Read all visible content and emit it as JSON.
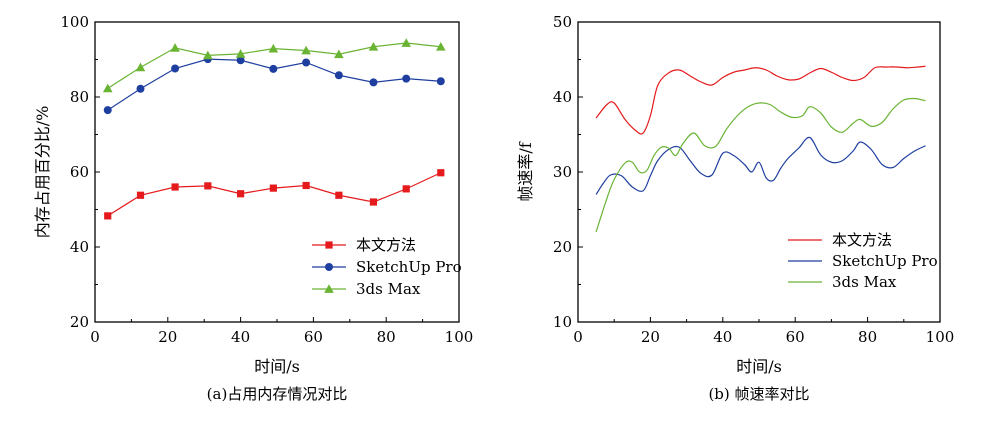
{
  "chart_data": [
    {
      "type": "line",
      "caption": "(a)占用内存情况对比",
      "xlabel": "时间/s",
      "ylabel": "内存占用百分比/%",
      "xlim": [
        0,
        100
      ],
      "ylim": [
        20,
        100
      ],
      "xticks": [
        "0",
        "20",
        "40",
        "60",
        "80",
        "100"
      ],
      "yticks": [
        "20",
        "40",
        "60",
        "80",
        "100"
      ],
      "legend_position": "bottom-right",
      "x": [
        3.5,
        12.5,
        22,
        31,
        40,
        49,
        58,
        67,
        76.5,
        85.5,
        95
      ],
      "series": [
        {
          "name": "本文方法",
          "color": "#e41a1c",
          "marker": "square",
          "values": [
            48.3,
            53.8,
            56.0,
            56.3,
            54.2,
            55.7,
            56.4,
            53.8,
            52.0,
            55.5,
            59.8
          ]
        },
        {
          "name": "SketchUp Pro",
          "color": "#1f3fa0",
          "marker": "circle",
          "values": [
            76.5,
            82.2,
            87.6,
            90.1,
            89.8,
            87.5,
            89.2,
            85.8,
            83.9,
            84.9,
            84.2
          ]
        },
        {
          "name": "3ds Max",
          "color": "#6ab434",
          "marker": "triangle",
          "values": [
            82.3,
            87.9,
            93.1,
            91.1,
            91.5,
            92.9,
            92.4,
            91.4,
            93.4,
            94.4,
            93.4
          ]
        }
      ]
    },
    {
      "type": "line",
      "caption": "(b) 帧速率对比",
      "xlabel": "时间/s",
      "ylabel": "帧速率/f",
      "xlim": [
        0,
        100
      ],
      "ylim": [
        10,
        50
      ],
      "xticks": [
        "0",
        "20",
        "40",
        "60",
        "80",
        "100"
      ],
      "yticks": [
        "10",
        "20",
        "30",
        "40",
        "50"
      ],
      "legend_position": "bottom-right",
      "series": [
        {
          "name": "本文方法",
          "color": "#e41a1c",
          "x": [
            5,
            8,
            10,
            13,
            16,
            18,
            20,
            22,
            25,
            28,
            31,
            34,
            37,
            40,
            43,
            46,
            49,
            52,
            55,
            58,
            61,
            64,
            67,
            70,
            73,
            76,
            79,
            82,
            85,
            88,
            91,
            94,
            96
          ],
          "values": [
            37.2,
            39.0,
            39.2,
            37.0,
            35.5,
            35.2,
            37.5,
            41.5,
            43.2,
            43.6,
            42.8,
            42.0,
            41.6,
            42.6,
            43.3,
            43.6,
            43.9,
            43.6,
            42.8,
            42.3,
            42.4,
            43.2,
            43.8,
            43.3,
            42.6,
            42.2,
            42.6,
            43.9,
            44.0,
            44.0,
            43.9,
            44.0,
            44.1
          ]
        },
        {
          "name": "SketchUp Pro",
          "color": "#1f3fa0",
          "x": [
            5,
            7,
            9,
            12,
            15,
            18,
            20,
            22,
            25,
            28,
            31,
            34,
            37,
            40,
            43,
            46,
            48,
            50,
            52,
            54,
            56,
            58,
            61,
            64,
            67,
            70,
            73,
            76,
            78,
            81,
            84,
            87,
            90,
            93,
            96
          ],
          "values": [
            27.0,
            28.5,
            29.6,
            29.5,
            28.0,
            27.5,
            29.5,
            31.5,
            33.0,
            33.3,
            31.5,
            29.8,
            29.6,
            32.5,
            32.2,
            31.0,
            30.0,
            31.3,
            29.2,
            28.9,
            30.5,
            31.8,
            33.2,
            34.6,
            32.3,
            31.3,
            31.5,
            32.8,
            34.0,
            33.0,
            31.0,
            30.6,
            31.8,
            32.8,
            33.5
          ]
        },
        {
          "name": "3ds Max",
          "color": "#6ab434",
          "x": [
            5,
            8,
            10,
            13,
            15,
            17,
            19,
            21,
            23,
            25,
            27,
            29,
            32,
            35,
            38,
            41,
            44,
            47,
            50,
            53,
            56,
            59,
            62,
            64,
            67,
            70,
            73,
            76,
            78,
            81,
            84,
            87,
            90,
            93,
            96
          ],
          "values": [
            22.0,
            26.5,
            29.0,
            31.2,
            31.3,
            30.0,
            30.2,
            32.2,
            33.3,
            33.2,
            32.2,
            33.8,
            35.2,
            33.5,
            33.4,
            35.7,
            37.5,
            38.7,
            39.2,
            39.0,
            38.0,
            37.3,
            37.5,
            38.7,
            37.9,
            36.0,
            35.3,
            36.5,
            37.0,
            36.1,
            36.6,
            38.4,
            39.6,
            39.8,
            39.5
          ]
        }
      ]
    }
  ]
}
